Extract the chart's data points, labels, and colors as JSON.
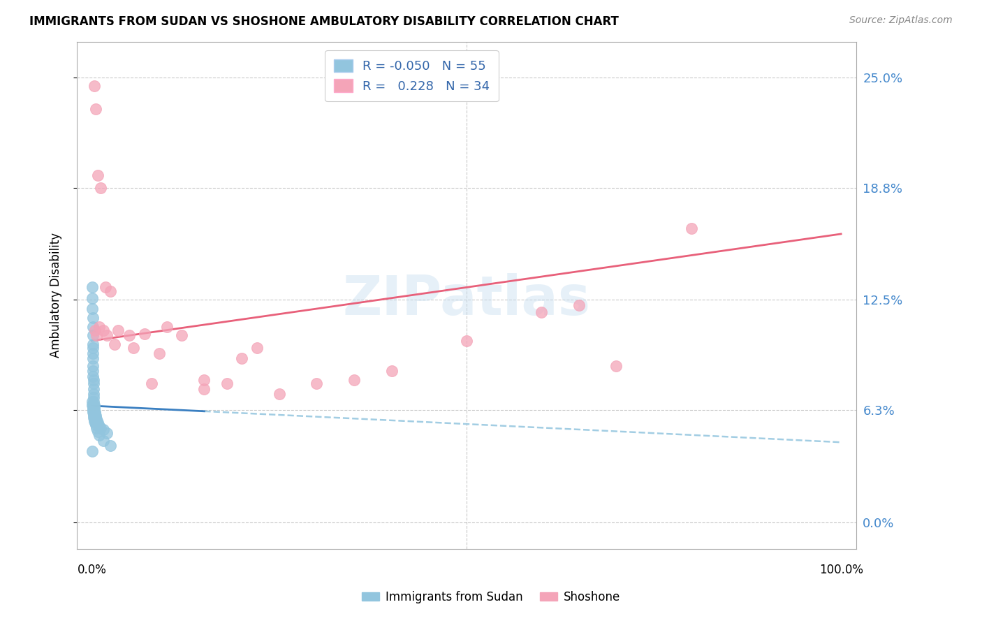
{
  "title": "IMMIGRANTS FROM SUDAN VS SHOSHONE AMBULATORY DISABILITY CORRELATION CHART",
  "source": "Source: ZipAtlas.com",
  "ylabel": "Ambulatory Disability",
  "ytick_vals": [
    0.0,
    6.3,
    12.5,
    18.8,
    25.0
  ],
  "ytick_labels": [
    "0.0%",
    "6.3%",
    "12.5%",
    "18.8%",
    "25.0%"
  ],
  "legend_r_blue": "-0.050",
  "legend_n_blue": "55",
  "legend_r_pink": "0.228",
  "legend_n_pink": "34",
  "legend_label_blue": "Immigrants from Sudan",
  "legend_label_pink": "Shoshone",
  "blue_color": "#92c5de",
  "pink_color": "#f4a4b8",
  "blue_line_color": "#3a7fc1",
  "blue_dash_color": "#92c5de",
  "pink_line_color": "#e8607a",
  "watermark": "ZIPatlas",
  "blue_x": [
    0.05,
    0.05,
    0.08,
    0.1,
    0.1,
    0.1,
    0.1,
    0.12,
    0.12,
    0.15,
    0.15,
    0.15,
    0.18,
    0.2,
    0.2,
    0.2,
    0.22,
    0.25,
    0.25,
    0.28,
    0.3,
    0.3,
    0.3,
    0.35,
    0.4,
    0.4,
    0.45,
    0.5,
    0.5,
    0.6,
    0.7,
    0.8,
    1.0,
    1.2,
    1.5,
    2.0,
    0.05,
    0.08,
    0.1,
    0.12,
    0.15,
    0.18,
    0.2,
    0.22,
    0.25,
    0.3,
    0.35,
    0.4,
    0.5,
    0.6,
    0.8,
    1.0,
    1.5,
    2.5,
    0.05
  ],
  "blue_y": [
    13.2,
    12.6,
    12.0,
    11.5,
    11.0,
    10.5,
    10.0,
    9.8,
    9.5,
    9.2,
    8.8,
    8.5,
    8.2,
    8.0,
    7.8,
    7.5,
    7.2,
    7.0,
    6.8,
    6.6,
    6.5,
    6.4,
    6.3,
    6.3,
    6.2,
    6.1,
    6.1,
    6.0,
    5.9,
    5.8,
    5.7,
    5.6,
    5.4,
    5.3,
    5.2,
    5.0,
    6.8,
    6.6,
    6.5,
    6.4,
    6.3,
    6.2,
    6.1,
    6.0,
    5.9,
    5.8,
    5.7,
    5.6,
    5.5,
    5.3,
    5.1,
    4.9,
    4.6,
    4.3,
    4.0
  ],
  "pink_x": [
    0.3,
    0.5,
    0.8,
    1.2,
    1.8,
    2.5,
    3.5,
    5.0,
    7.0,
    8.0,
    10.0,
    12.0,
    15.0,
    18.0,
    20.0,
    25.0,
    30.0,
    35.0,
    40.0,
    50.0,
    60.0,
    65.0,
    70.0,
    80.0,
    0.4,
    0.6,
    1.0,
    1.5,
    2.0,
    3.0,
    5.5,
    9.0,
    15.0,
    22.0
  ],
  "pink_y": [
    24.5,
    23.2,
    19.5,
    18.8,
    13.2,
    13.0,
    10.8,
    10.5,
    10.6,
    7.8,
    11.0,
    10.5,
    7.5,
    7.8,
    9.2,
    7.2,
    7.8,
    8.0,
    8.5,
    10.2,
    11.8,
    12.2,
    8.8,
    16.5,
    10.8,
    10.5,
    11.0,
    10.8,
    10.5,
    10.0,
    9.8,
    9.5,
    8.0,
    9.8
  ],
  "blue_line_start_x": 0.0,
  "blue_line_start_y": 6.55,
  "blue_line_solid_end_x": 15.0,
  "blue_line_end_x": 100.0,
  "blue_line_end_y": 4.5,
  "pink_line_start_x": 0.0,
  "pink_line_start_y": 10.2,
  "pink_line_end_x": 100.0,
  "pink_line_end_y": 16.2,
  "xlim": [
    -2,
    102
  ],
  "ylim": [
    -1.5,
    27.0
  ]
}
